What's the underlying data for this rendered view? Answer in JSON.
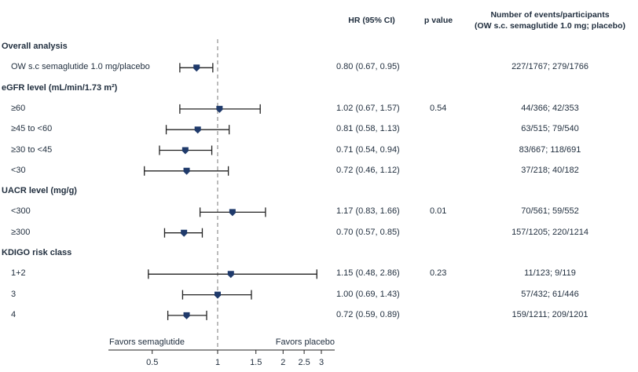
{
  "chart_data": {
    "type": "forest",
    "columns": {
      "hr": "HR (95% CI)",
      "p": "p value",
      "events_line1": "Number of events/participants",
      "events_line2": "(OW s.c. semaglutide 1.0 mg; placebo)"
    },
    "x_axis": {
      "scale": "log",
      "ticks": [
        0.5,
        1,
        1.5,
        2,
        2.5,
        3
      ],
      "tick_labels": [
        "0.5",
        "1",
        "1.5",
        "2",
        "2.5",
        "3"
      ],
      "reference_line": 1,
      "left_annotation": "Favors semaglutide",
      "right_annotation": "Favors placebo"
    },
    "rows": [
      {
        "kind": "section",
        "label": "Overall analysis"
      },
      {
        "kind": "row",
        "label": "OW s.c semaglutide 1.0 mg/placebo",
        "hr": 0.8,
        "lo": 0.67,
        "hi": 0.95,
        "hr_text": "0.80 (0.67, 0.95)",
        "p": "",
        "events": "227/1767; 279/1766"
      },
      {
        "kind": "section",
        "label": "eGFR level (mL/min/1.73 m²)"
      },
      {
        "kind": "row",
        "label": "≥60",
        "hr": 1.02,
        "lo": 0.67,
        "hi": 1.57,
        "hr_text": "1.02 (0.67, 1.57)",
        "p": "0.54",
        "events": "44/366; 42/353"
      },
      {
        "kind": "row",
        "label": "≥45 to <60",
        "hr": 0.81,
        "lo": 0.58,
        "hi": 1.13,
        "hr_text": "0.81 (0.58, 1.13)",
        "p": "",
        "events": "63/515; 79/540"
      },
      {
        "kind": "row",
        "label": "≥30 to <45",
        "hr": 0.71,
        "lo": 0.54,
        "hi": 0.94,
        "hr_text": "0.71 (0.54, 0.94)",
        "p": "",
        "events": "83/667; 118/691"
      },
      {
        "kind": "row",
        "label": "<30",
        "hr": 0.72,
        "lo": 0.46,
        "hi": 1.12,
        "hr_text": "0.72 (0.46, 1.12)",
        "p": "",
        "events": "37/218; 40/182"
      },
      {
        "kind": "section",
        "label": "UACR level (mg/g)"
      },
      {
        "kind": "row",
        "label": "<300",
        "hr": 1.17,
        "lo": 0.83,
        "hi": 1.66,
        "hr_text": "1.17 (0.83, 1.66)",
        "p": "0.01",
        "events": "70/561; 59/552"
      },
      {
        "kind": "row",
        "label": "≥300",
        "hr": 0.7,
        "lo": 0.57,
        "hi": 0.85,
        "hr_text": "0.70 (0.57, 0.85)",
        "p": "",
        "events": "157/1205; 220/1214"
      },
      {
        "kind": "section",
        "label": "KDIGO risk class"
      },
      {
        "kind": "row",
        "label": "1+2",
        "hr": 1.15,
        "lo": 0.48,
        "hi": 2.86,
        "hr_text": "1.15 (0.48, 2.86)",
        "p": "0.23",
        "events": "11/123; 9/119"
      },
      {
        "kind": "row",
        "label": "3",
        "hr": 1.0,
        "lo": 0.69,
        "hi": 1.43,
        "hr_text": "1.00 (0.69, 1.43)",
        "p": "",
        "events": "57/432; 61/446"
      },
      {
        "kind": "row",
        "label": "4",
        "hr": 0.72,
        "lo": 0.59,
        "hi": 0.89,
        "hr_text": "0.72 (0.59, 0.89)",
        "p": "",
        "events": "159/1211; 209/1201"
      }
    ],
    "colors": {
      "marker": "#1f3a6b",
      "text": "#1f2d3d",
      "line": "#222222",
      "reference": "#999999"
    }
  }
}
